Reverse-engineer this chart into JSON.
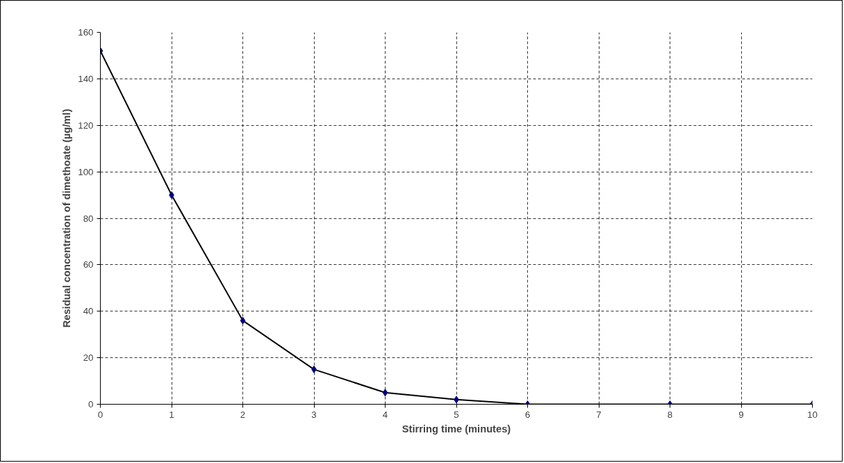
{
  "chart_data": {
    "type": "line",
    "xlabel": "Stirring time (minutes)",
    "ylabel": "Residual concentration of dimethoate (µg/ml)",
    "x": [
      0,
      1,
      2,
      3,
      4,
      5,
      6,
      8,
      10
    ],
    "series": [
      {
        "color": "#000000",
        "marker": "none",
        "values": [
          152,
          90,
          36,
          15,
          5,
          2,
          0,
          0,
          0
        ]
      },
      {
        "type": "scatter",
        "color": "#000080",
        "marker": "diamond",
        "values": [
          152,
          90,
          36,
          15,
          5,
          2,
          0,
          0,
          0
        ]
      }
    ],
    "line_style": "solid",
    "xlim": [
      0,
      10
    ],
    "xticks": [
      0,
      1,
      2,
      3,
      4,
      5,
      6,
      7,
      8,
      9,
      10
    ],
    "ylim": [
      0,
      160
    ],
    "yticks": [
      0,
      20,
      40,
      60,
      80,
      100,
      120,
      140,
      160
    ],
    "grid": true
  }
}
